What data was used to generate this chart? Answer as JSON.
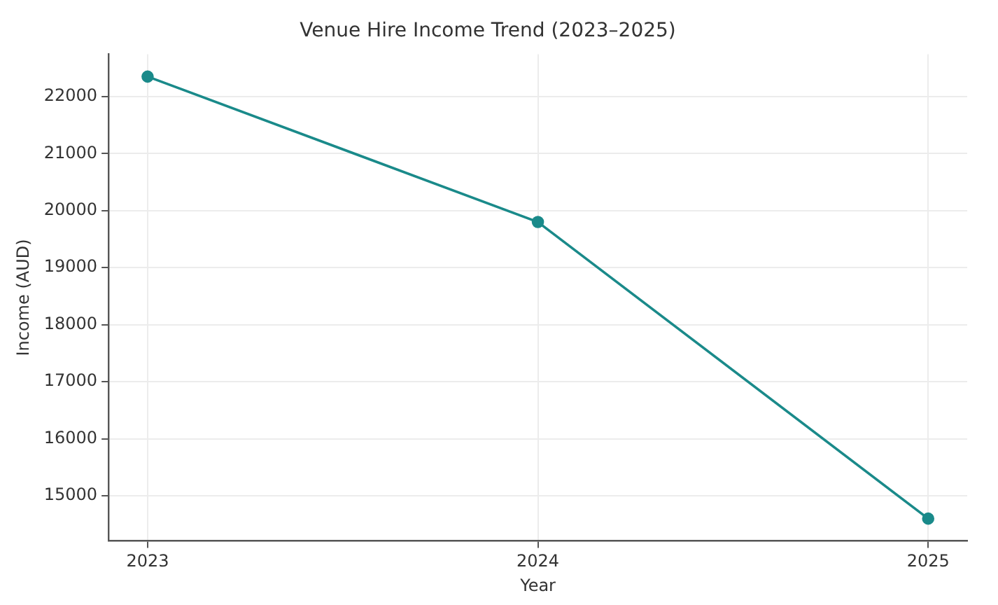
{
  "chart_data": {
    "type": "line",
    "title": "Venue Hire Income Trend (2023–2025)",
    "xlabel": "Year",
    "ylabel": "Income (AUD)",
    "x": [
      2023,
      2024,
      2025
    ],
    "series": [
      {
        "color": "#1a8a8a",
        "values": [
          22350,
          19800,
          14600
        ]
      }
    ],
    "xlim": [
      2022.9,
      2025.1
    ],
    "xticks": [
      2023,
      2024,
      2025
    ],
    "ylim": [
      14210,
      22740
    ],
    "yticks": [
      15000,
      16000,
      17000,
      18000,
      19000,
      20000,
      21000,
      22000
    ],
    "grid": true,
    "marker": "circle",
    "line_style": "solid",
    "legend": false
  }
}
